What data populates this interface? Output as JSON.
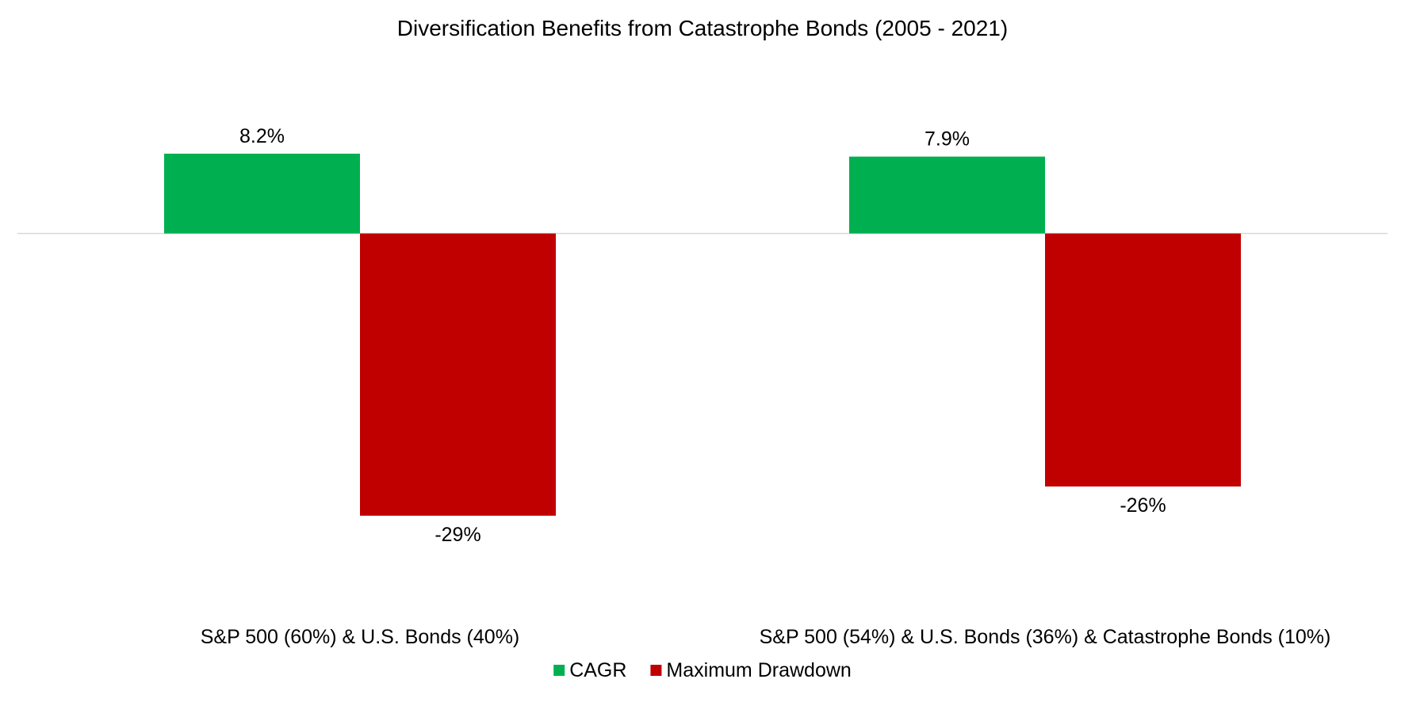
{
  "chart_data": {
    "type": "bar",
    "title": "Diversification Benefits from Catastrophe Bonds (2005 - 2021)",
    "categories": [
      "S&P 500 (60%) & U.S. Bonds (40%)",
      "S&P 500 (54%) & U.S. Bonds (36%) & Catastrophe Bonds (10%)"
    ],
    "series": [
      {
        "name": "CAGR",
        "color": "#00B050",
        "values": [
          0.082,
          0.079
        ],
        "labels": [
          "8.2%",
          "7.9%"
        ]
      },
      {
        "name": "Maximum Drawdown",
        "color": "#C00000",
        "values": [
          -0.29,
          -0.26
        ],
        "labels": [
          "-29%",
          "-26%"
        ]
      }
    ],
    "ylim": [
      -0.33,
      0.13
    ],
    "xlabel": "",
    "ylabel": "",
    "grid": false,
    "legend": "bottom-center"
  }
}
